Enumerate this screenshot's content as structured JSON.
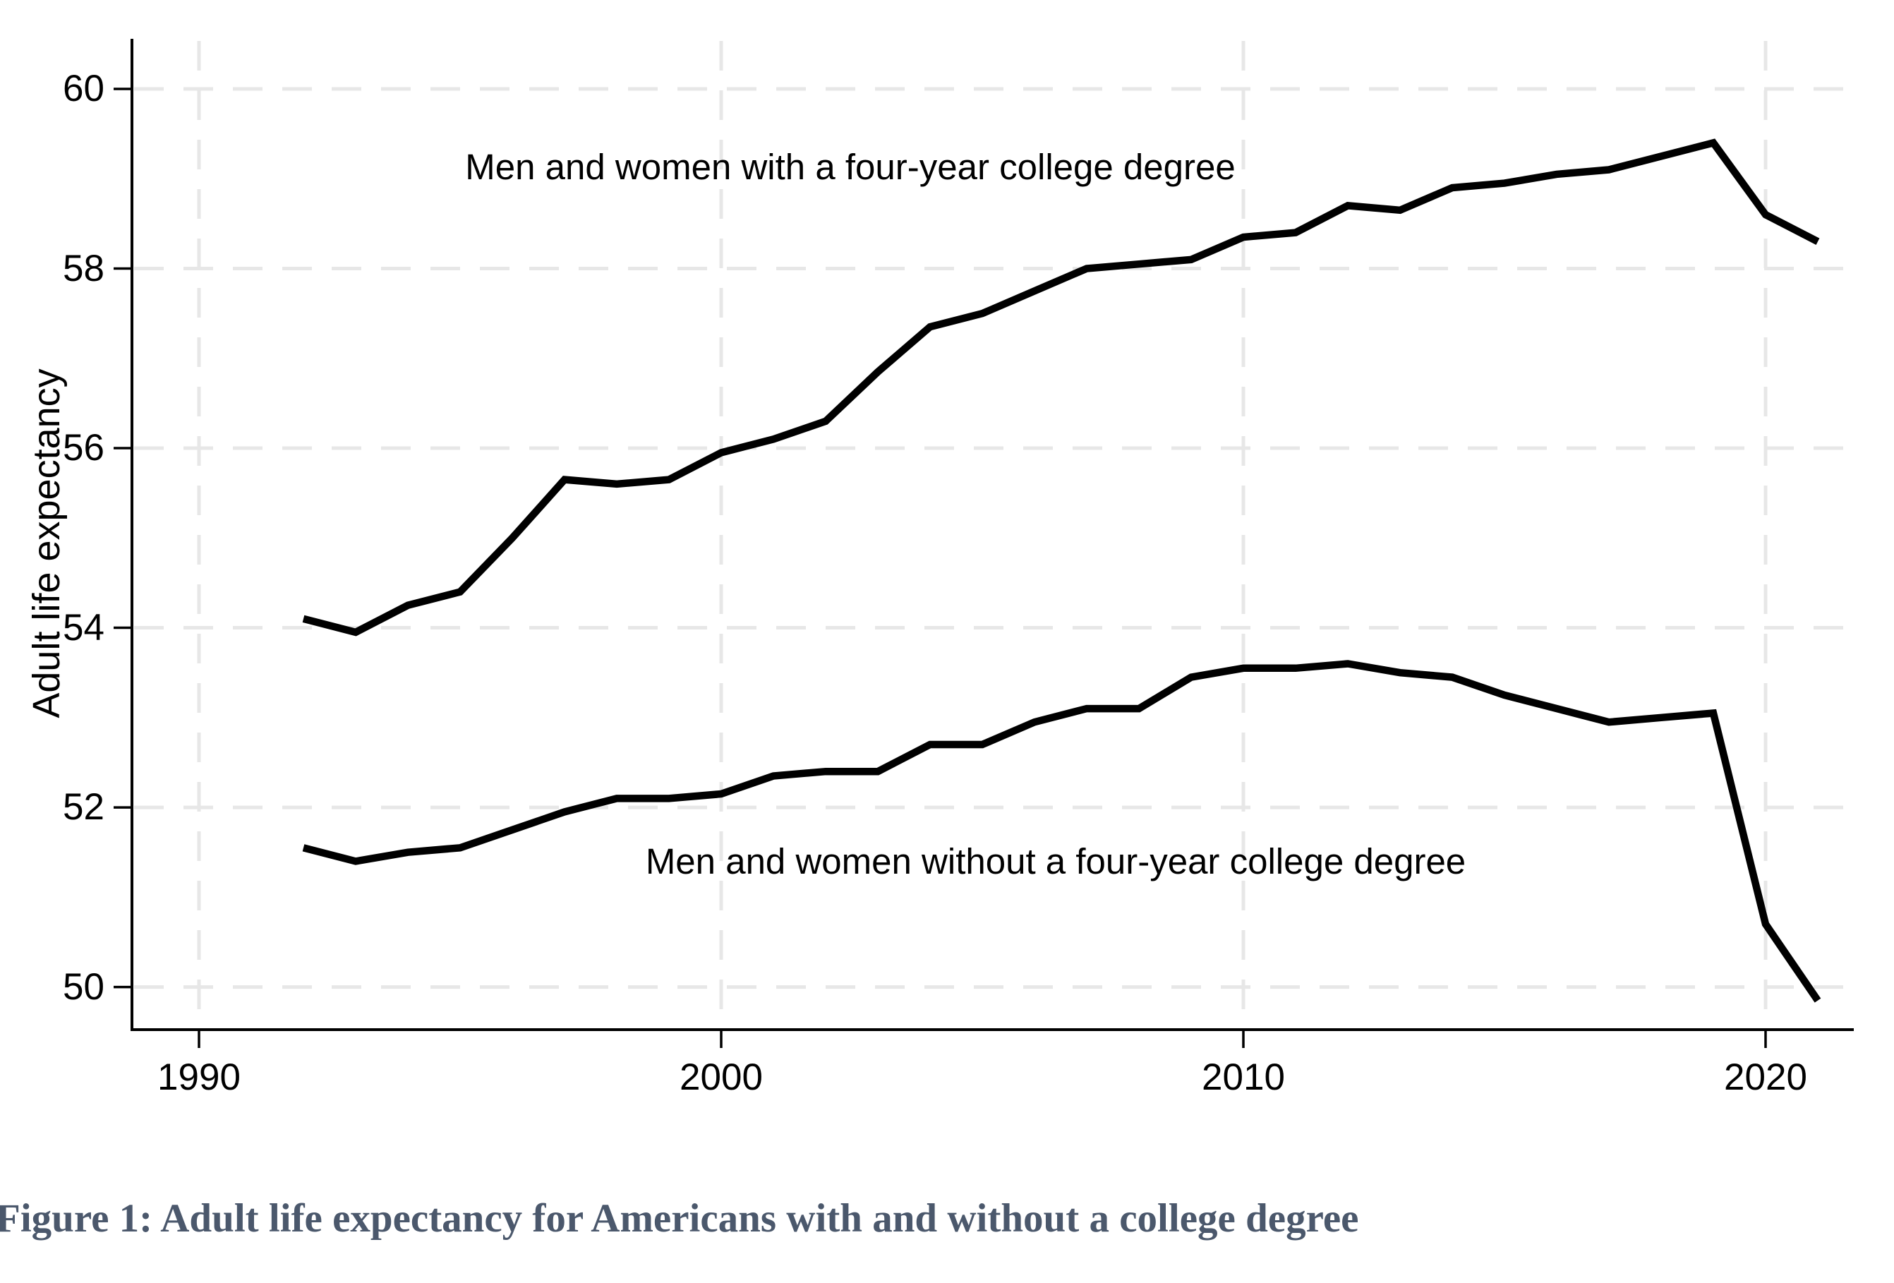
{
  "figure": {
    "caption": "Figure 1: Adult life expectancy for Americans with and without a college degree",
    "caption_color": "#4b586c",
    "background": "#ffffff"
  },
  "chart_data": {
    "type": "line",
    "title": "",
    "xlabel": "",
    "ylabel": "Adult life expectancy",
    "x_tick_labels": [
      "1990",
      "2000",
      "2010",
      "2020"
    ],
    "y_tick_labels": [
      "60",
      "58",
      "56",
      "54",
      "52",
      "50"
    ],
    "x_ticks": [
      1990,
      2000,
      2010,
      2020
    ],
    "y_ticks": [
      60,
      58,
      56,
      54,
      52,
      50
    ],
    "xlim": [
      1988.7,
      2021.7
    ],
    "ylim": [
      49.5,
      60.55
    ],
    "grid": "light dashed gridlines at every tick on both axes",
    "legend": "none - direct labels placed above/below the lines",
    "line_color": "#000000",
    "axis_color": "#000000",
    "gridline_color": "#e7e7e7",
    "x": [
      1992,
      1993,
      1994,
      1995,
      1996,
      1997,
      1998,
      1999,
      2000,
      2001,
      2002,
      2003,
      2004,
      2005,
      2006,
      2007,
      2008,
      2009,
      2010,
      2011,
      2012,
      2013,
      2014,
      2015,
      2016,
      2017,
      2018,
      2019,
      2020,
      2021
    ],
    "series": [
      {
        "name": "with-four-year-college-degree",
        "label": "Men and women with a four-year college degree",
        "values": [
          54.1,
          53.95,
          54.25,
          54.4,
          55.0,
          55.65,
          55.6,
          55.65,
          55.95,
          56.1,
          56.3,
          56.85,
          57.35,
          57.5,
          57.75,
          58.0,
          58.05,
          58.1,
          58.35,
          58.4,
          58.7,
          58.65,
          58.9,
          58.95,
          59.05,
          59.1,
          59.25,
          59.4,
          58.6,
          58.3
        ]
      },
      {
        "name": "without-four-year-college-degree",
        "label": "Men and women without a four-year college degree",
        "values": [
          51.55,
          51.4,
          51.5,
          51.55,
          51.75,
          51.95,
          52.1,
          52.1,
          52.15,
          52.35,
          52.4,
          52.4,
          52.7,
          52.7,
          52.95,
          53.1,
          53.1,
          53.45,
          53.55,
          53.55,
          53.6,
          53.5,
          53.45,
          53.25,
          53.1,
          52.95,
          53.0,
          53.05,
          50.7,
          49.85
        ]
      }
    ]
  }
}
